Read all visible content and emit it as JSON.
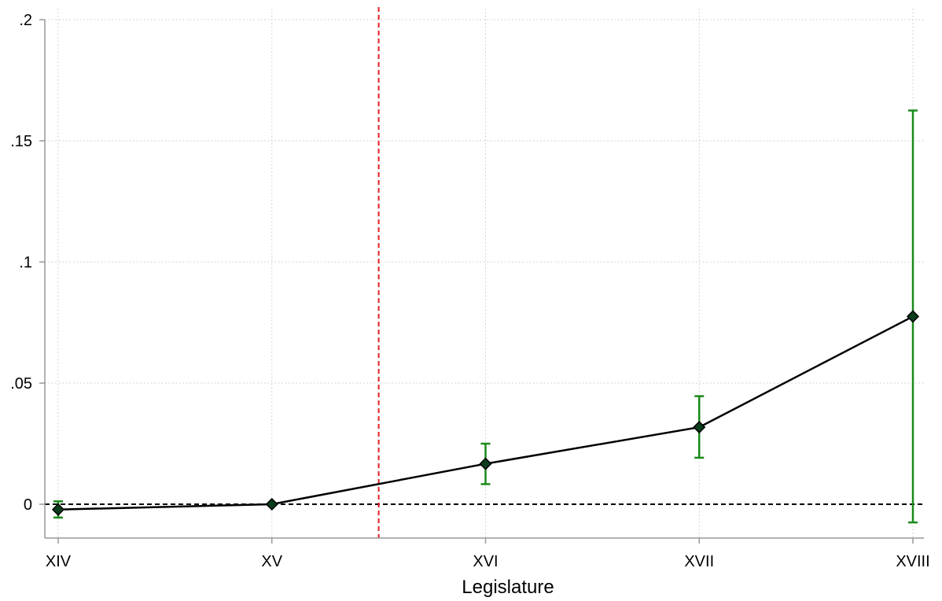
{
  "chart_data": {
    "type": "line",
    "xlabel": "Legislature",
    "ylabel": "",
    "categories": [
      "XIV",
      "XV",
      "XVI",
      "XVII",
      "XVIII"
    ],
    "ylim": [
      -0.014,
      0.205
    ],
    "yticks": [
      0,
      0.05,
      0.1,
      0.15,
      0.2
    ],
    "ytick_labels": [
      "0",
      ".05",
      ".1",
      ".15",
      ".2"
    ],
    "grid": true,
    "series": [
      {
        "values": [
          -0.0022,
          0.0,
          0.0167,
          0.0318,
          0.0775
        ],
        "ci_lower": [
          -0.0055,
          null,
          0.0083,
          0.0192,
          -0.0075
        ],
        "ci_upper": [
          0.0012,
          null,
          0.025,
          0.0446,
          0.1625
        ]
      }
    ],
    "reference_lines": {
      "horizontal_y": 0,
      "vertical_between": [
        "XV",
        "XVI"
      ]
    },
    "colors": {
      "line": "#000000",
      "marker": "#0b3d1c",
      "error_bar": "#1a8a1a",
      "zero_line": "#000000",
      "vertical_line": "#e02020",
      "grid": "#c8c8c8",
      "axis": "#999999"
    }
  }
}
